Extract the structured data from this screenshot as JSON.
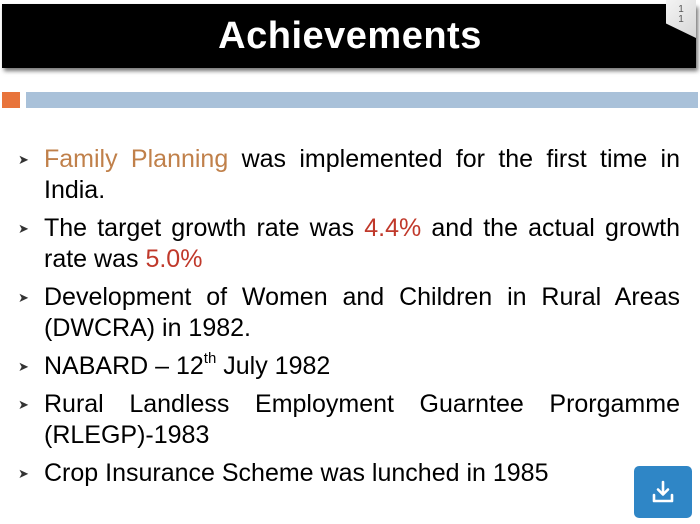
{
  "slide": {
    "title": "Achievements",
    "page_number": "11",
    "colors": {
      "title_bar": "#000000",
      "accent_square": "#e8743b",
      "accent_bar": "#a9c1d9",
      "highlight_orange": "#c0804a",
      "highlight_red": "#c0392b",
      "download_button": "#2f86c6"
    }
  },
  "bullets": [
    {
      "parts": [
        {
          "text": "Family Planning",
          "style": "orange"
        },
        {
          "text": " was implemented for the first time in India."
        }
      ]
    },
    {
      "parts": [
        {
          "text": "The target growth rate was "
        },
        {
          "text": "4.4%",
          "style": "red"
        },
        {
          "text": " and the actual growth rate was "
        },
        {
          "text": "5.0%",
          "style": "red"
        }
      ]
    },
    {
      "parts": [
        {
          "text": "Development of Women and Children in Rural Areas (DWCRA) in 1982."
        }
      ]
    },
    {
      "parts": [
        {
          "text": "NABARD – 12"
        },
        {
          "text": "th",
          "style": "sup"
        },
        {
          "text": " July 1982"
        }
      ]
    },
    {
      "parts": [
        {
          "text": "Rural Landless Employment Guarntee Prorgamme (RLEGP)-1983"
        }
      ]
    },
    {
      "parts": [
        {
          "text": "Crop Insurance Scheme was lunched in 1985"
        }
      ]
    }
  ],
  "icons": {
    "bullet": "arrowhead-bullet-icon",
    "download": "download-icon"
  }
}
